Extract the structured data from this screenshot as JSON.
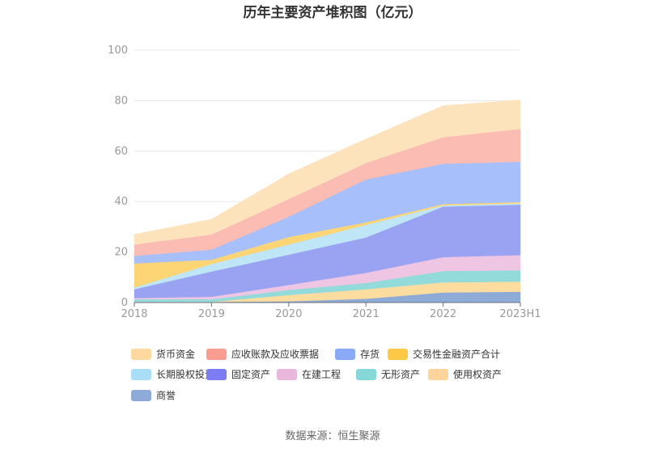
{
  "title": "历年主要资产堆积图（亿元）",
  "source_note": "数据来源：恒生聚源",
  "chart_data": {
    "type": "area",
    "stacked": true,
    "title": "历年主要资产堆积图（亿元）",
    "categories": [
      "2018",
      "2019",
      "2020",
      "2021",
      "2022",
      "2023H1"
    ],
    "ylim": [
      0,
      100
    ],
    "yticks": [
      0,
      20,
      40,
      60,
      80,
      100
    ],
    "grid": true,
    "legend_position": "bottom",
    "series": [
      {
        "name": "商誉",
        "color": "#8eaad6",
        "values": [
          0.3,
          0.3,
          0.5,
          1.5,
          4.0,
          4.3
        ]
      },
      {
        "name": "使用权资产",
        "color": "#fddca0",
        "values": [
          0,
          0,
          2.5,
          3.8,
          4.0,
          4.0
        ]
      },
      {
        "name": "无形资产",
        "color": "#93dadb",
        "values": [
          1.0,
          1.0,
          2.0,
          2.5,
          4.5,
          4.5
        ]
      },
      {
        "name": "在建工程",
        "color": "#eec6e3",
        "values": [
          0.5,
          1.0,
          2.0,
          4.0,
          5.5,
          6.0
        ]
      },
      {
        "name": "固定资产",
        "color": "#9aa3f2",
        "values": [
          3.5,
          10.0,
          12.0,
          14.0,
          20.0,
          20.0
        ]
      },
      {
        "name": "长期股权投资",
        "color": "#bee6f7",
        "values": [
          0.7,
          3.0,
          4.0,
          5.0,
          0.5,
          0.5
        ]
      },
      {
        "name": "交易性金融资产合计",
        "color": "#fed574",
        "values": [
          9.5,
          1.7,
          3.0,
          1.0,
          0.5,
          0.5
        ]
      },
      {
        "name": "存货",
        "color": "#a7c0fb",
        "values": [
          3.0,
          4.0,
          8.0,
          17.0,
          16.0,
          16.0
        ]
      },
      {
        "name": "应收账款及应收票据",
        "color": "#fbbcb4",
        "values": [
          4.5,
          6.0,
          7.0,
          6.5,
          10.5,
          13.0
        ]
      },
      {
        "name": "货币资金",
        "color": "#fde3bb",
        "values": [
          4.0,
          6.0,
          10.0,
          9.5,
          12.5,
          11.5
        ]
      }
    ],
    "legend_order": [
      "货币资金",
      "应收账款及应收票据",
      "存货",
      "交易性金融资产合计",
      "长期股权投资",
      "固定资产",
      "在建工程",
      "无形资产",
      "使用权资产",
      "商誉"
    ],
    "legend_colors": {
      "货币资金": "#fdd9a0",
      "应收账款及应收票据": "#f99d90",
      "存货": "#8aaaf8",
      "交易性金融资产合计": "#fdc844",
      "长期股权投资": "#a9def6",
      "固定资产": "#7c7df2",
      "在建工程": "#e9b6dc",
      "无形资产": "#86d7d8",
      "使用权资产": "#fdd59a",
      "商誉": "#8eaad6"
    }
  }
}
